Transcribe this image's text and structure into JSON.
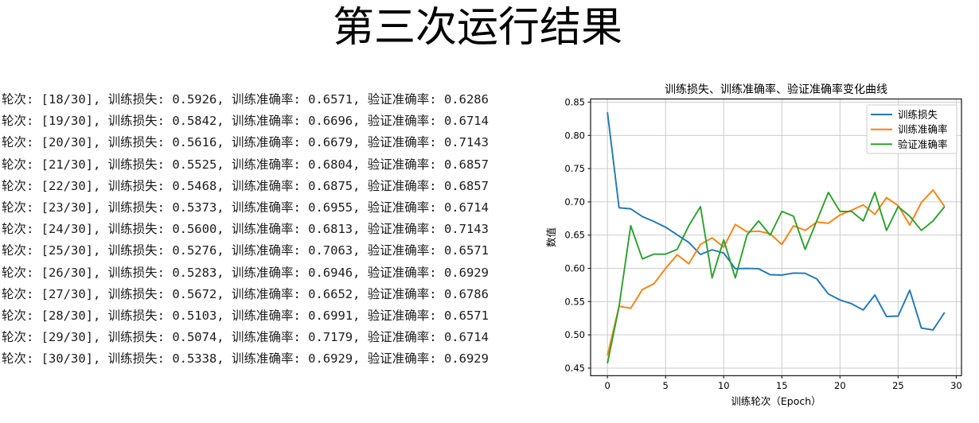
{
  "page": {
    "title": "第三次运行结果"
  },
  "log": {
    "labels": {
      "epoch": "轮次",
      "loss": "训练损失",
      "train_acc": "训练准确率",
      "val_acc": "验证准确率"
    },
    "rows": [
      {
        "epoch": "18/30",
        "loss": "0.5926",
        "train_acc": "0.6571",
        "val_acc": "0.6286"
      },
      {
        "epoch": "19/30",
        "loss": "0.5842",
        "train_acc": "0.6696",
        "val_acc": "0.6714"
      },
      {
        "epoch": "20/30",
        "loss": "0.5616",
        "train_acc": "0.6679",
        "val_acc": "0.7143"
      },
      {
        "epoch": "21/30",
        "loss": "0.5525",
        "train_acc": "0.6804",
        "val_acc": "0.6857"
      },
      {
        "epoch": "22/30",
        "loss": "0.5468",
        "train_acc": "0.6875",
        "val_acc": "0.6857"
      },
      {
        "epoch": "23/30",
        "loss": "0.5373",
        "train_acc": "0.6955",
        "val_acc": "0.6714"
      },
      {
        "epoch": "24/30",
        "loss": "0.5600",
        "train_acc": "0.6813",
        "val_acc": "0.7143"
      },
      {
        "epoch": "25/30",
        "loss": "0.5276",
        "train_acc": "0.7063",
        "val_acc": "0.6571"
      },
      {
        "epoch": "26/30",
        "loss": "0.5283",
        "train_acc": "0.6946",
        "val_acc": "0.6929"
      },
      {
        "epoch": "27/30",
        "loss": "0.5672",
        "train_acc": "0.6652",
        "val_acc": "0.6786"
      },
      {
        "epoch": "28/30",
        "loss": "0.5103",
        "train_acc": "0.6991",
        "val_acc": "0.6571"
      },
      {
        "epoch": "29/30",
        "loss": "0.5074",
        "train_acc": "0.7179",
        "val_acc": "0.6714"
      },
      {
        "epoch": "30/30",
        "loss": "0.5338",
        "train_acc": "0.6929",
        "val_acc": "0.6929"
      }
    ]
  },
  "chart_data": {
    "type": "line",
    "title": "训练损失、训练准确率、验证准确率变化曲线",
    "xlabel": "训练轮次（Epoch）",
    "ylabel": "数值",
    "x": [
      0,
      1,
      2,
      3,
      4,
      5,
      6,
      7,
      8,
      9,
      10,
      11,
      12,
      13,
      14,
      15,
      16,
      17,
      18,
      19,
      20,
      21,
      22,
      23,
      24,
      25,
      26,
      27,
      28,
      29
    ],
    "series": [
      {
        "id": "train-loss",
        "name": "训练损失",
        "color": "#1f77b4",
        "values": [
          0.8349,
          0.6912,
          0.6896,
          0.678,
          0.6705,
          0.662,
          0.6505,
          0.639,
          0.621,
          0.628,
          0.623,
          0.5995,
          0.6,
          0.5995,
          0.5905,
          0.59,
          0.593,
          0.5926,
          0.5842,
          0.5616,
          0.5525,
          0.5468,
          0.5373,
          0.56,
          0.5276,
          0.5283,
          0.5672,
          0.5103,
          0.5074,
          0.5338
        ]
      },
      {
        "id": "train-acc",
        "name": "训练准确率",
        "color": "#ff7f0e",
        "values": [
          0.4688,
          0.543,
          0.54,
          0.568,
          0.577,
          0.6,
          0.6205,
          0.607,
          0.636,
          0.646,
          0.632,
          0.666,
          0.655,
          0.656,
          0.652,
          0.636,
          0.664,
          0.6571,
          0.6696,
          0.6679,
          0.6804,
          0.6875,
          0.6955,
          0.6813,
          0.7063,
          0.6946,
          0.6652,
          0.6991,
          0.7179,
          0.6929
        ]
      },
      {
        "id": "val-acc",
        "name": "验证准确率",
        "color": "#2ca02c",
        "values": [
          0.4571,
          0.5429,
          0.6643,
          0.6143,
          0.6214,
          0.6214,
          0.6286,
          0.6643,
          0.6929,
          0.5857,
          0.6429,
          0.5857,
          0.65,
          0.6714,
          0.65,
          0.6857,
          0.6786,
          0.6286,
          0.6714,
          0.7143,
          0.6857,
          0.6857,
          0.6714,
          0.7143,
          0.6571,
          0.6929,
          0.6786,
          0.6571,
          0.6714,
          0.6929
        ]
      }
    ],
    "xlim": [
      -1.45,
      30.45
    ],
    "ylim": [
      0.4386,
      0.8548
    ],
    "xticks": [
      0,
      5,
      10,
      15,
      20,
      25,
      30
    ],
    "yticks": [
      0.45,
      0.5,
      0.55,
      0.6,
      0.65,
      0.7,
      0.75,
      0.8,
      0.85
    ],
    "grid": true,
    "legend_position": "upper right",
    "grid_color": "#cccccc",
    "spine_color": "#262626",
    "text_color": "#000000"
  }
}
